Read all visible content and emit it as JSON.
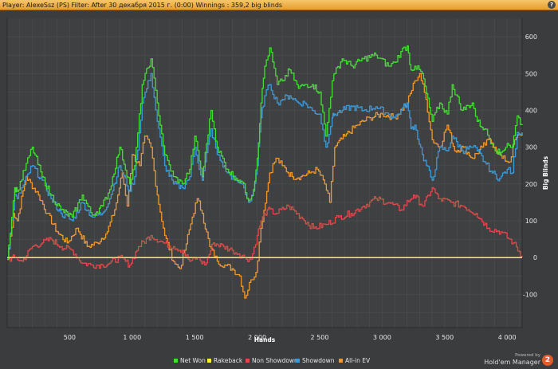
{
  "header": {
    "title": "Player: AlexeSsz (PS) Filter: After 30 декабря 2015 г. (0:00) Winnings : 359,2 big blinds",
    "help_label": "?"
  },
  "branding": {
    "powered_label": "Powered by",
    "product_name": "Hold'em Manager",
    "logo_label": "2"
  },
  "chart_data": {
    "type": "line",
    "xlabel": "Hands",
    "ylabel": "Big Blinds",
    "xlim": [
      0,
      4120
    ],
    "ylim": [
      -190,
      650
    ],
    "x_ticks": [
      500,
      1000,
      1500,
      2000,
      2500,
      3000,
      3500,
      4000
    ],
    "x_tick_labels": [
      "500",
      "1 000",
      "1 500",
      "2 000",
      "2 500",
      "3 000",
      "3 500",
      "4 000"
    ],
    "y_ticks": [
      -100,
      0,
      100,
      200,
      300,
      400,
      500,
      600
    ],
    "y_tick_labels": [
      "-100",
      "0",
      "100",
      "200",
      "300",
      "400",
      "500",
      "600"
    ],
    "grid": true,
    "legend_position": "bottom",
    "zero_line": true,
    "series": [
      {
        "name": "Net Won",
        "color": "#44dd33",
        "x": [
          0,
          60,
          80,
          200,
          280,
          350,
          430,
          520,
          600,
          680,
          760,
          820,
          900,
          980,
          1020,
          1080,
          1150,
          1200,
          1260,
          1330,
          1400,
          1460,
          1500,
          1560,
          1630,
          1680,
          1760,
          1830,
          1880,
          1930,
          1970,
          2000,
          2030,
          2060,
          2100,
          2160,
          2200,
          2260,
          2330,
          2380,
          2440,
          2500,
          2550,
          2600,
          2620,
          2680,
          2760,
          2850,
          2950,
          3050,
          3100,
          3150,
          3200,
          3230,
          3260,
          3320,
          3400,
          3460,
          3520,
          3560,
          3640,
          3720,
          3760,
          3820,
          3880,
          3940,
          4000,
          4040,
          4080,
          4120
        ],
        "y": [
          -5,
          190,
          180,
          300,
          220,
          170,
          130,
          110,
          170,
          115,
          140,
          185,
          300,
          200,
          250,
          470,
          540,
          420,
          280,
          220,
          200,
          240,
          330,
          220,
          400,
          300,
          240,
          215,
          205,
          155,
          185,
          270,
          420,
          520,
          570,
          470,
          480,
          510,
          460,
          470,
          470,
          450,
          330,
          480,
          500,
          540,
          520,
          540,
          550,
          520,
          530,
          560,
          575,
          510,
          520,
          500,
          370,
          420,
          390,
          470,
          400,
          420,
          370,
          350,
          310,
          280,
          310,
          300,
          385,
          360
        ]
      },
      {
        "name": "Rakeback",
        "color": "#ffee33",
        "x": [
          0,
          4120
        ],
        "y": [
          0,
          0
        ]
      },
      {
        "name": "Non Showdown",
        "color": "#dd4a4a",
        "x": [
          0,
          60,
          120,
          200,
          280,
          350,
          430,
          520,
          600,
          680,
          760,
          820,
          900,
          980,
          1050,
          1150,
          1250,
          1330,
          1400,
          1460,
          1520,
          1580,
          1650,
          1730,
          1800,
          1850,
          1900,
          1950,
          2000,
          2030,
          2080,
          2150,
          2250,
          2350,
          2450,
          2550,
          2650,
          2750,
          2850,
          2950,
          3050,
          3150,
          3250,
          3330,
          3400,
          3450,
          3550,
          3650,
          3750,
          3850,
          3950,
          4050,
          4120
        ],
        "y": [
          -5,
          0,
          -10,
          30,
          40,
          50,
          30,
          20,
          -15,
          -20,
          -20,
          -15,
          0,
          -20,
          30,
          60,
          40,
          30,
          20,
          -10,
          0,
          -20,
          40,
          30,
          20,
          10,
          0,
          -5,
          60,
          100,
          130,
          120,
          140,
          110,
          80,
          90,
          110,
          120,
          140,
          160,
          150,
          130,
          170,
          140,
          190,
          160,
          150,
          140,
          120,
          80,
          70,
          40,
          5
        ]
      },
      {
        "name": "Showdown",
        "color": "#3d9ad9",
        "x": [
          0,
          60,
          80,
          200,
          280,
          350,
          430,
          520,
          600,
          680,
          760,
          820,
          900,
          980,
          1020,
          1080,
          1150,
          1200,
          1260,
          1330,
          1400,
          1460,
          1500,
          1560,
          1630,
          1680,
          1760,
          1830,
          1880,
          1930,
          1970,
          2000,
          2030,
          2060,
          2100,
          2160,
          2200,
          2260,
          2330,
          2380,
          2440,
          2500,
          2550,
          2600,
          2620,
          2680,
          2760,
          2850,
          2950,
          3050,
          3100,
          3150,
          3200,
          3230,
          3260,
          3320,
          3400,
          3460,
          3520,
          3560,
          3640,
          3720,
          3760,
          3820,
          3880,
          3940,
          4000,
          4040,
          4080,
          4120
        ],
        "y": [
          -5,
          170,
          160,
          250,
          210,
          160,
          120,
          100,
          150,
          110,
          120,
          160,
          250,
          180,
          220,
          420,
          500,
          370,
          250,
          200,
          190,
          220,
          300,
          210,
          350,
          280,
          230,
          210,
          200,
          150,
          180,
          250,
          380,
          440,
          470,
          420,
          430,
          440,
          420,
          420,
          400,
          390,
          300,
          380,
          390,
          400,
          410,
          400,
          410,
          390,
          380,
          400,
          420,
          350,
          360,
          280,
          210,
          300,
          290,
          330,
          290,
          300,
          290,
          260,
          230,
          215,
          240,
          230,
          340,
          340
        ]
      },
      {
        "name": "All-in EV",
        "color": "#f0982e",
        "x": [
          0,
          50,
          80,
          150,
          250,
          320,
          400,
          480,
          560,
          640,
          720,
          800,
          860,
          920,
          960,
          1000,
          1060,
          1100,
          1150,
          1200,
          1260,
          1330,
          1380,
          1420,
          1480,
          1520,
          1560,
          1620,
          1680,
          1740,
          1800,
          1860,
          1900,
          1950,
          1990,
          2030,
          2100,
          2150,
          2200,
          2280,
          2350,
          2420,
          2480,
          2540,
          2580,
          2620,
          2700,
          2800,
          2900,
          3000,
          3100,
          3200,
          3260,
          3300,
          3350,
          3400,
          3460,
          3520,
          3580,
          3650,
          3720,
          3800,
          3860,
          3900,
          3960,
          4020,
          4060,
          4120
        ],
        "y": [
          -5,
          120,
          100,
          220,
          170,
          120,
          70,
          40,
          80,
          30,
          40,
          70,
          130,
          230,
          140,
          280,
          250,
          330,
          300,
          170,
          60,
          -10,
          -30,
          20,
          110,
          160,
          120,
          30,
          -10,
          -20,
          -30,
          -50,
          -110,
          -60,
          -40,
          80,
          230,
          270,
          250,
          220,
          220,
          230,
          240,
          200,
          150,
          300,
          330,
          360,
          380,
          390,
          380,
          420,
          480,
          500,
          430,
          320,
          300,
          360,
          290,
          300,
          270,
          300,
          320,
          300,
          270,
          260,
          320,
          340
        ]
      }
    ]
  }
}
